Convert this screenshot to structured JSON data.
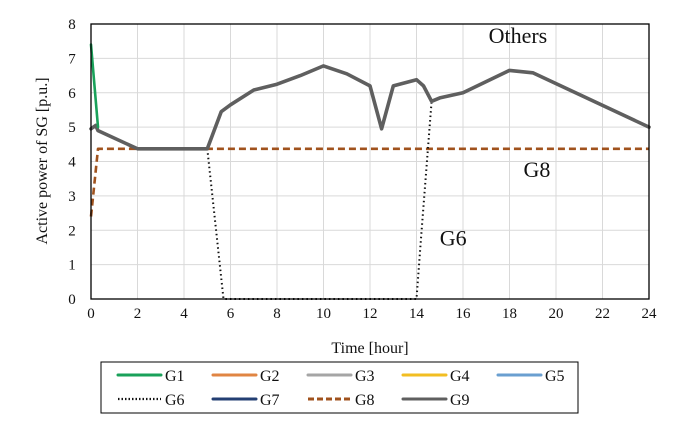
{
  "chart_data": {
    "type": "line",
    "title": "",
    "xlabel": "Time [hour]",
    "ylabel": "Active power of SG [p.u.]",
    "xlim": [
      0,
      24
    ],
    "ylim": [
      0,
      8
    ],
    "xticks": [
      0,
      2,
      4,
      6,
      8,
      10,
      12,
      14,
      16,
      18,
      20,
      22,
      24
    ],
    "yticks": [
      0,
      1,
      2,
      3,
      4,
      5,
      6,
      7,
      8
    ],
    "grid": true,
    "legend_position": "bottom",
    "series": [
      {
        "name": "G1",
        "color": "#1aa15a",
        "style": "solid",
        "x": [
          0,
          0.3
        ],
        "y": [
          7.4,
          5.0
        ]
      },
      {
        "name": "G2",
        "color": "#e08543",
        "style": "solid",
        "x": [],
        "y": []
      },
      {
        "name": "G3",
        "color": "#a5a5a5",
        "style": "solid",
        "x": [],
        "y": []
      },
      {
        "name": "G4",
        "color": "#f2be22",
        "style": "solid",
        "x": [],
        "y": []
      },
      {
        "name": "G5",
        "color": "#6a9fd0",
        "style": "solid",
        "x": [],
        "y": []
      },
      {
        "name": "G6",
        "color": "#111111",
        "style": "dotted",
        "x": [
          5,
          5.7,
          14,
          14.2,
          14.65
        ],
        "y": [
          4.37,
          0,
          0,
          1.8,
          5.75
        ]
      },
      {
        "name": "G7",
        "color": "#233f73",
        "style": "solid",
        "x": [],
        "y": []
      },
      {
        "name": "G8",
        "color": "#a0521d",
        "style": "dashed",
        "x": [
          0,
          0.3,
          24
        ],
        "y": [
          2.4,
          4.37,
          4.37
        ]
      },
      {
        "name": "G9",
        "color": "#5f5f5f",
        "style": "solid",
        "x": [
          0,
          0.2,
          0.3,
          2,
          5,
          5.6,
          6,
          7,
          8,
          9,
          10,
          11,
          12,
          12.5,
          13,
          14,
          14.3,
          14.65,
          15,
          16,
          18,
          19,
          24
        ],
        "y": [
          4.95,
          5.05,
          4.9,
          4.37,
          4.37,
          5.45,
          5.65,
          6.08,
          6.25,
          6.5,
          6.78,
          6.55,
          6.2,
          4.95,
          6.2,
          6.38,
          6.2,
          5.75,
          5.85,
          6.0,
          6.65,
          6.58,
          5.0
        ]
      }
    ],
    "annotations": [
      {
        "text": "Others",
        "x": 17.1,
        "y": 7.45
      },
      {
        "text": "G8",
        "x": 18.6,
        "y": 3.55
      },
      {
        "text": "G6",
        "x": 15.0,
        "y": 1.55
      }
    ]
  }
}
